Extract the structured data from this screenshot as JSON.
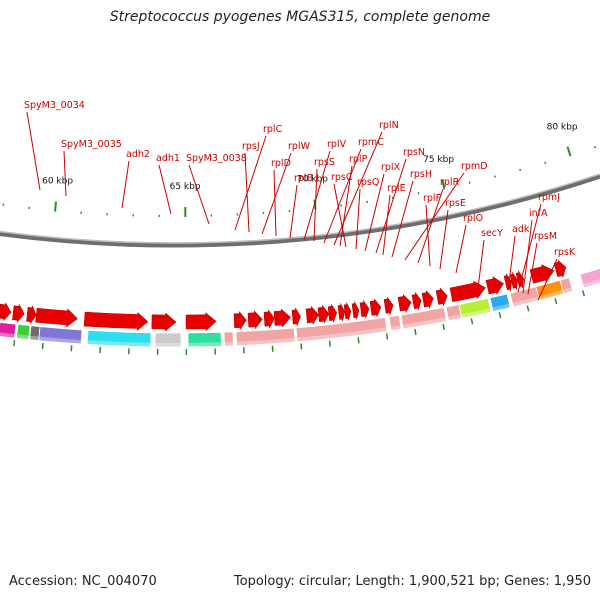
{
  "title": "Streptococcus pyogenes MGAS315, complete genome",
  "footer": {
    "accession": "Accession: NC_004070",
    "info": "Topology: circular; Length: 1,900,521 bp; Genes: 1,950"
  },
  "colors": {
    "label_red": "#cc0000",
    "backbone": "#888888",
    "tick_green": "#2e8b2e",
    "cds_arrow_red": "#e80000",
    "ribosomal_pink": "#f2a0a0"
  },
  "scale": {
    "ticks": [
      {
        "kbp": 60,
        "label": "60 kbp"
      },
      {
        "kbp": 65,
        "label": "65 kbp"
      },
      {
        "kbp": 70,
        "label": "70 kbp"
      },
      {
        "kbp": 75,
        "label": "75 kbp"
      },
      {
        "kbp": 80,
        "label": "80 kbp"
      }
    ]
  },
  "gene_labels": [
    {
      "name": "SpyM3_0034"
    },
    {
      "name": "SpyM3_0035"
    },
    {
      "name": "adh2"
    },
    {
      "name": "adh1"
    },
    {
      "name": "SpyM3_0038"
    },
    {
      "name": "rplC"
    },
    {
      "name": "rpsJ"
    },
    {
      "name": "rplW"
    },
    {
      "name": "rplD"
    },
    {
      "name": "rplB"
    },
    {
      "name": "rplV"
    },
    {
      "name": "rpsS"
    },
    {
      "name": "rpmC"
    },
    {
      "name": "rplN"
    },
    {
      "name": "rplP"
    },
    {
      "name": "rpsC"
    },
    {
      "name": "rpsQ"
    },
    {
      "name": "rplX"
    },
    {
      "name": "rpsN"
    },
    {
      "name": "rplE"
    },
    {
      "name": "rpsH"
    },
    {
      "name": "rpmD"
    },
    {
      "name": "rplR"
    },
    {
      "name": "rplF"
    },
    {
      "name": "rpsE"
    },
    {
      "name": "rplO"
    },
    {
      "name": "secY"
    },
    {
      "name": "rpmJ"
    },
    {
      "name": "adk"
    },
    {
      "name": "infA"
    },
    {
      "name": "rpsM"
    },
    {
      "name": "rpsK"
    }
  ]
}
